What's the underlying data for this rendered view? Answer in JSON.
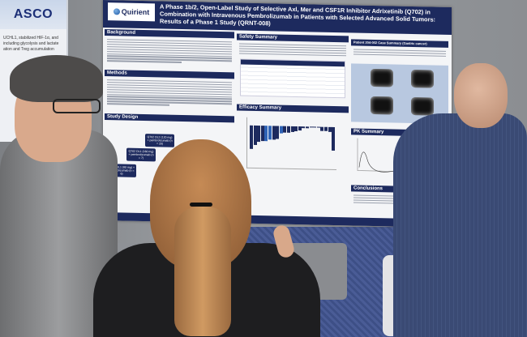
{
  "asco_poster": {
    "logo": "ASCO",
    "text": "UCHL1, stabilized HIF-1α, and including glycolysis and lactate ation and Treg accumulation"
  },
  "poster": {
    "brand": "Quirient",
    "title": "A Phase 1b/2, Open-Label Study of Selective Axl, Mer and CSF1R Inhibitor Adrixetinib (Q702) in Combination with Intravenous Pembrolizumab in Patients with Selected Advanced Solid Tumors: Results of a Phase 1 Study (QRNT-008)",
    "sections": {
      "background": "Background",
      "methods": "Methods",
      "study_design": "Study Design",
      "safety": "Safety Summary",
      "efficacy": "Efficacy Summary",
      "case": "Patient 204-002 Case Summary (Gastric cancer)",
      "pk": "PK Summary",
      "conclusions": "Conclusions"
    },
    "design_boxes": [
      "Q702 DL1 (80 mg) + pembrolizumab (n = 6)",
      "Q702 DL1 (160 mg) + pembrolizumab (n = 7)",
      "Q702 DL2 (120 mg) + pembrolizumab (n = 20)"
    ],
    "waterfall_values": [
      -95,
      -80,
      -65,
      -62,
      -62,
      -58,
      -56,
      -52,
      -30,
      -28,
      -25,
      -22,
      -20,
      -18,
      -5,
      -5,
      0,
      0,
      0,
      -15,
      -18,
      -20,
      -95
    ],
    "colors": {
      "navy": "#1d2a5e",
      "board": "#8e9196",
      "carpet": "#3d4f86"
    }
  }
}
